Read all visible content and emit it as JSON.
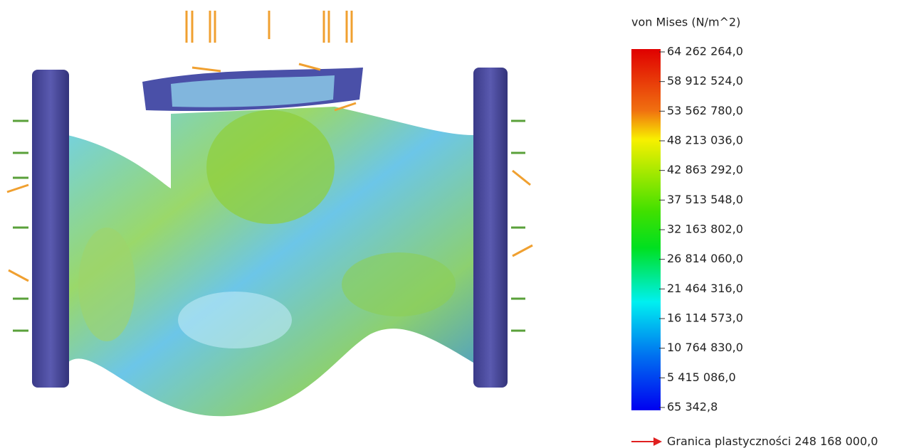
{
  "legend": {
    "title": "von Mises (N/m^2)",
    "ticks": [
      "64 262 264,0",
      "58 912 524,0",
      "53 562 780,0",
      "48 213 036,0",
      "42 863 292,0",
      "37 513 548,0",
      "32 163 802,0",
      "26 814 060,0",
      "21 464 316,0",
      "16 114 573,0",
      "10 764 830,0",
      "5 415 086,0",
      "65 342,8"
    ]
  },
  "yield_strength": {
    "label": "Granica plastyczności",
    "value": "248 168 000,0"
  }
}
